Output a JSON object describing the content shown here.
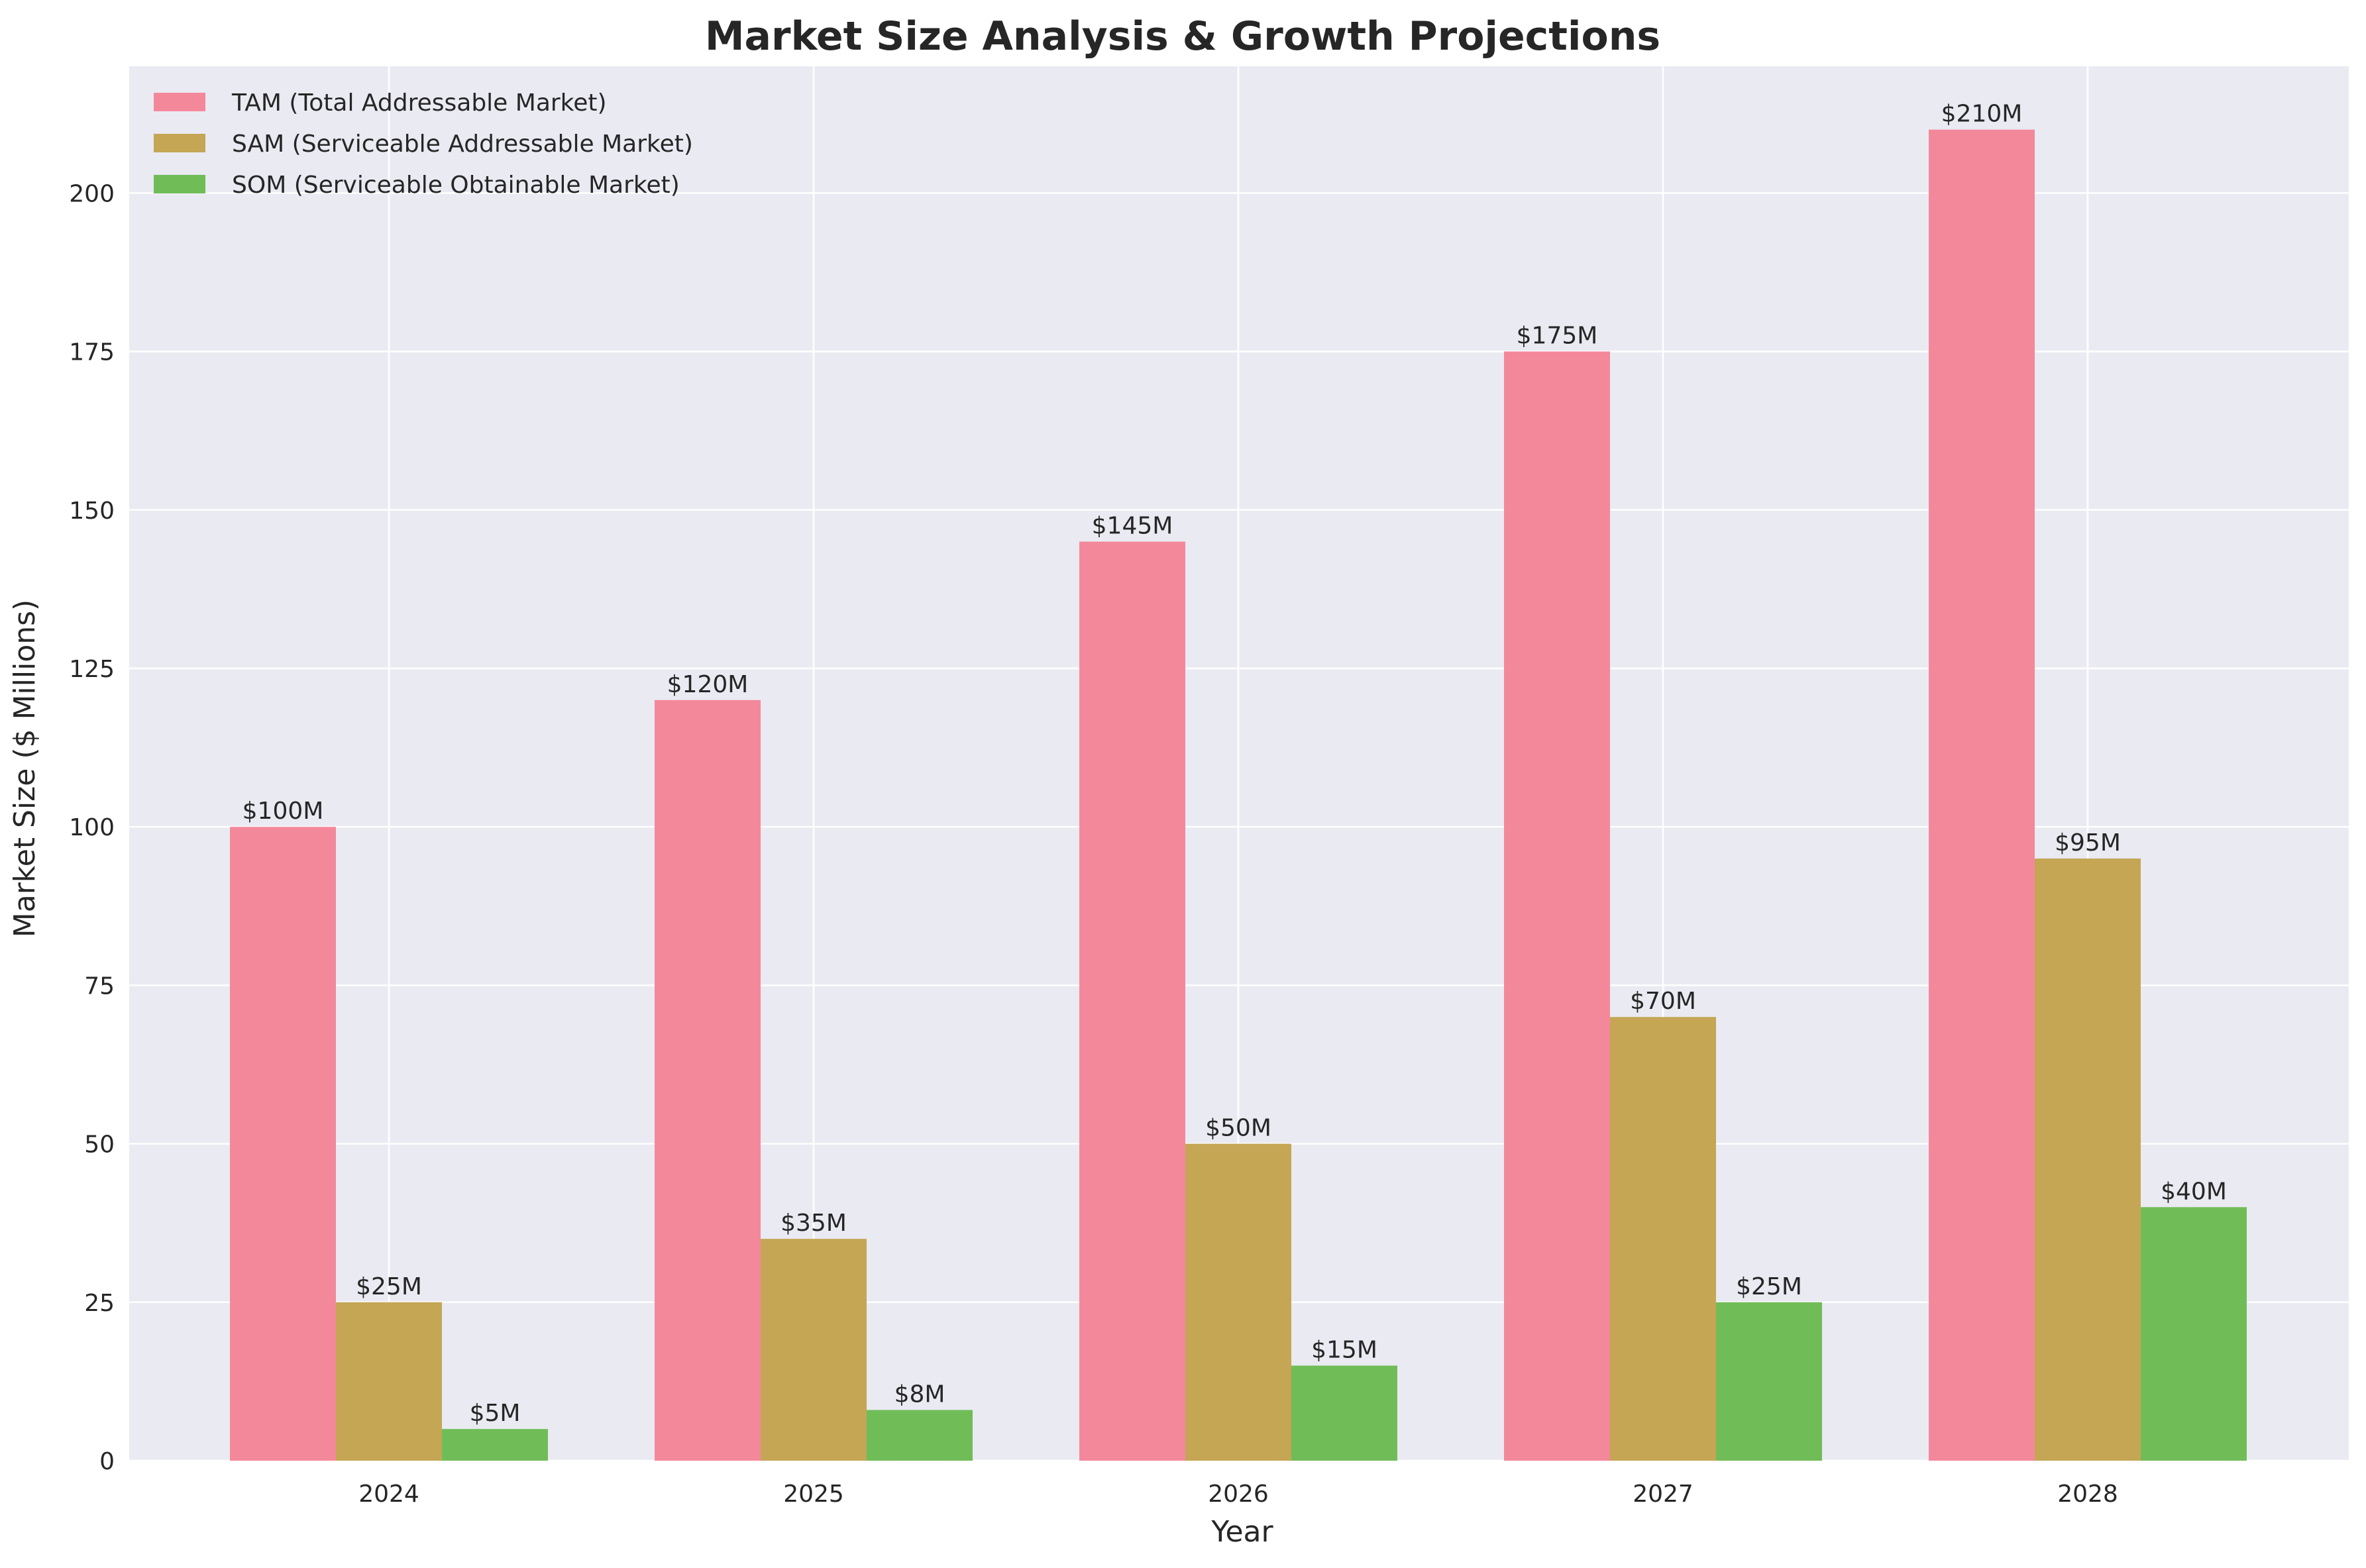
{
  "chart_data": {
    "type": "bar",
    "title": "Market Size Analysis & Growth Projections",
    "xlabel": "Year",
    "ylabel": "Market Size ($ Millions)",
    "categories": [
      "2024",
      "2025",
      "2026",
      "2027",
      "2028"
    ],
    "ylim": [
      0,
      220
    ],
    "yticks": [
      0,
      25,
      50,
      75,
      100,
      125,
      150,
      175,
      200
    ],
    "grid": true,
    "legend_position": "top-left",
    "series": [
      {
        "name": "TAM (Total Addressable Market)",
        "color": "#f4889b",
        "values": [
          100,
          120,
          145,
          175,
          210
        ],
        "labels": [
          "$100M",
          "$120M",
          "$145M",
          "$175M",
          "$210M"
        ]
      },
      {
        "name": "SAM (Serviceable Addressable Market)",
        "color": "#c4a655",
        "values": [
          25,
          35,
          50,
          70,
          95
        ],
        "labels": [
          "$25M",
          "$35M",
          "$50M",
          "$70M",
          "$95M"
        ]
      },
      {
        "name": "SOM (Serviceable Obtainable Market)",
        "color": "#70bd58",
        "values": [
          5,
          8,
          15,
          25,
          40
        ],
        "labels": [
          "$5M",
          "$8M",
          "$15M",
          "$25M",
          "$40M"
        ]
      }
    ]
  },
  "colors": {
    "plot_background": "#eaeaf2",
    "grid": "#ffffff",
    "text": "#262626"
  }
}
